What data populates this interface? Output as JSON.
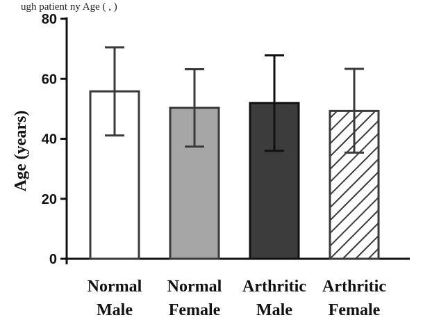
{
  "caption_fragment": "ugh        patient         ny          Age          (      ,          )",
  "chart_data": {
    "type": "bar",
    "ylabel": "Age (years)",
    "xlabel": "",
    "ylim": [
      0,
      80
    ],
    "yticks": [
      0,
      20,
      40,
      60,
      80
    ],
    "categories": [
      [
        "Normal",
        "Male"
      ],
      [
        "Normal",
        "Female"
      ],
      [
        "Arthritic",
        "Male"
      ],
      [
        "Arthritic",
        "Female"
      ]
    ],
    "values": [
      55.8,
      50.3,
      51.9,
      49.3
    ],
    "errors": [
      [
        41.1,
        70.5
      ],
      [
        37.4,
        63.2
      ],
      [
        36.0,
        67.8
      ],
      [
        35.4,
        63.3
      ]
    ],
    "fills": [
      "#ffffff",
      "#a6a6a6",
      "#3c3c3c",
      "hatch"
    ],
    "colors": {
      "edge": "#3a3a3a",
      "axis": "#111111"
    }
  }
}
